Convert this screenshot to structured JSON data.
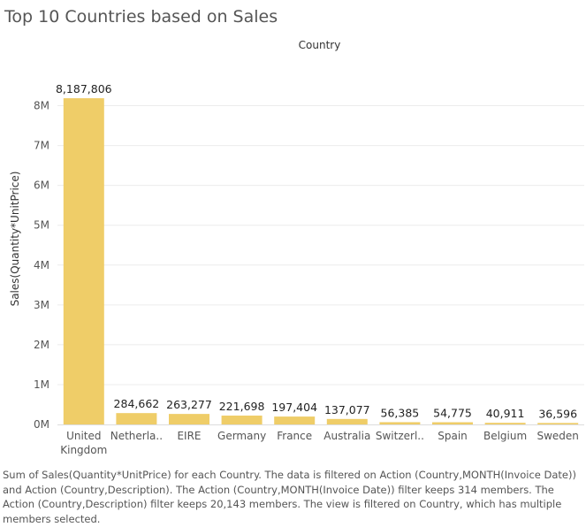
{
  "chart_data": {
    "type": "bar",
    "title": "Top 10 Countries based on Sales",
    "header": "Country",
    "ylabel": "Sales(Quantity*UnitPrice)",
    "xlabel": "",
    "categories": [
      [
        "United",
        "Kingdom"
      ],
      [
        "Netherla.."
      ],
      [
        "EIRE"
      ],
      [
        "Germany"
      ],
      [
        "France"
      ],
      [
        "Australia"
      ],
      [
        "Switzerl.."
      ],
      [
        "Spain"
      ],
      [
        "Belgium"
      ],
      [
        "Sweden"
      ]
    ],
    "values": [
      8187806,
      284662,
      263277,
      221698,
      197404,
      137077,
      56385,
      54775,
      40911,
      36596
    ],
    "data_labels": [
      "8,187,806",
      "284,662",
      "263,277",
      "221,698",
      "197,404",
      "137,077",
      "56,385",
      "54,775",
      "40,911",
      "36,596"
    ],
    "yticks": [
      0,
      1000000,
      2000000,
      3000000,
      4000000,
      5000000,
      6000000,
      7000000,
      8000000
    ],
    "ytick_labels": [
      "0M",
      "1M",
      "2M",
      "3M",
      "4M",
      "5M",
      "6M",
      "7M",
      "8M"
    ],
    "ylim": [
      0,
      8700000
    ],
    "grid": true,
    "bar_color": "#efcd68",
    "grid_color": "#ececec"
  },
  "caption": "Sum of Sales(Quantity*UnitPrice) for each Country. The data is filtered on Action (Country,MONTH(Invoice Date)) and Action (Country,Description). The Action (Country,MONTH(Invoice Date)) filter keeps 314 members. The Action (Country,Description) filter keeps 20,143 members. The view is filtered on Country, which has multiple members selected."
}
